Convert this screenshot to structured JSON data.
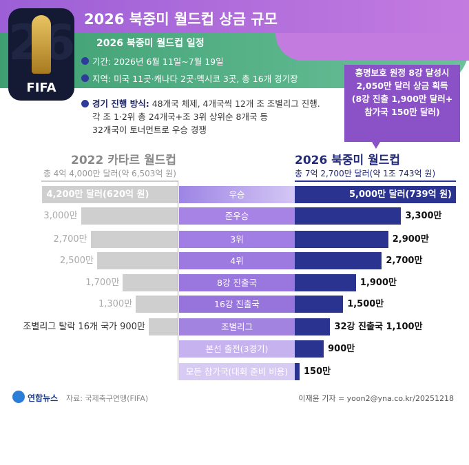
{
  "header": {
    "title": "2026 북중미 월드컵 상금 규모",
    "logo_text": "FIFA",
    "logo_number": "26"
  },
  "schedule": {
    "title": "2026 북중미 월드컵 일정",
    "period": "기간: 2026년 6월 11일~7월 19일",
    "venue": "지역: 미국 11곳·캐나다 2곳·멕시코 3곳, 총 16개 경기장",
    "method_label": "경기 진행 방식:",
    "method_lines": [
      "48개국 체제, 4개국씩 12개 조 조별리그 진행.",
      "각 조 1·2위 총 24개국+조 3위 상위순 8개국 등",
      "32개국이 토너먼트로 우승 경쟁"
    ]
  },
  "callout": {
    "lines": [
      "홍명보호 원정 8강 달성시",
      "2,050만 달러 상금 획득",
      "(8강 진출 1,900만 달러+",
      "참가국 150만 달러)"
    ]
  },
  "chart_data": {
    "type": "bar",
    "unit": "만 달러",
    "categories": [
      "우승",
      "준우승",
      "3위",
      "4위",
      "8강 진출국",
      "16강 진출국",
      "조별리그",
      "본선 출전(3경기)",
      "모든 참가국(대회 준비 비용)"
    ],
    "series": [
      {
        "name": "2022 카타르 월드컵",
        "total": "총 4억 4,000만 달러(약 6,503억 원)",
        "values": [
          4200,
          3000,
          2700,
          2500,
          1700,
          1300,
          900,
          null,
          null
        ],
        "labels": [
          "4,200만 달러(620억 원)",
          "3,000만",
          "2,700만",
          "2,500만",
          "1,700만",
          "1,300만",
          "조별리그 탈락 16개 국가 900만",
          "",
          ""
        ],
        "color": "#cfcfcf"
      },
      {
        "name": "2026 북중미 월드컵",
        "total": "총 7억 2,700만 달러(약 1조 743억 원)",
        "values": [
          5000,
          3300,
          2900,
          2700,
          1900,
          1500,
          1100,
          900,
          150
        ],
        "labels": [
          "5,000만 달러(739억 원)",
          "3,300만",
          "2,900만",
          "2,700만",
          "1,900만",
          "1,500만",
          "32강 진출국 1,100만",
          "900만",
          "150만"
        ],
        "color": "#2b3391"
      }
    ]
  },
  "footer": {
    "brand": "연합뉴스",
    "source": "자료: 국제축구연맹(FIFA)",
    "credit": "이재윤 기자 = yoon2@yna.co.kr/20251218"
  }
}
